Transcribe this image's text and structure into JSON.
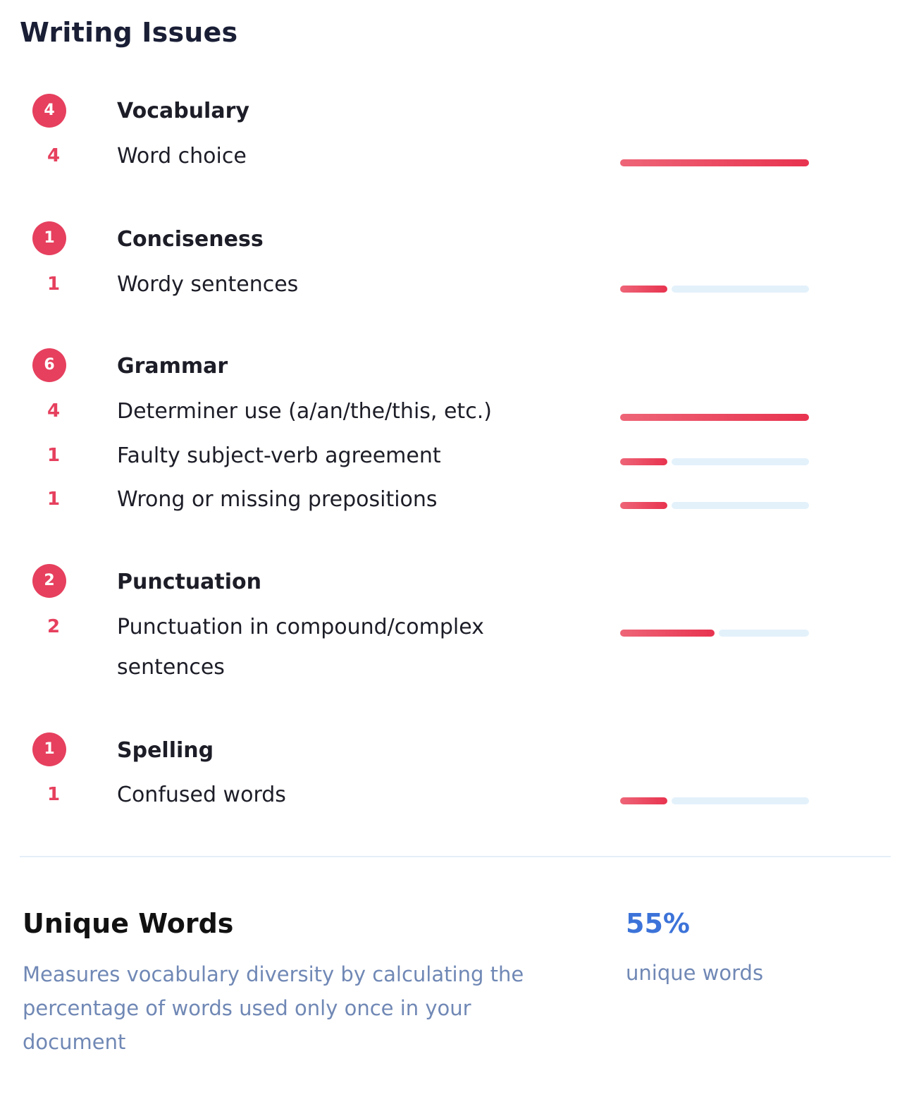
{
  "title": "Writing Issues",
  "colors": {
    "accent": "#e6405e",
    "track": "#e3f1fb",
    "link": "#3c73d9",
    "muted": "#7088b5"
  },
  "categories": [
    {
      "count": "4",
      "title": "Vocabulary",
      "items": [
        {
          "count": "4",
          "label": "Word choice",
          "fill_fraction": 1.0
        }
      ]
    },
    {
      "count": "1",
      "title": "Conciseness",
      "items": [
        {
          "count": "1",
          "label": "Wordy sentences",
          "fill_fraction": 0.25
        }
      ]
    },
    {
      "count": "6",
      "title": "Grammar",
      "items": [
        {
          "count": "4",
          "label": "Determiner use (a/an/the/this, etc.)",
          "fill_fraction": 1.0
        },
        {
          "count": "1",
          "label": "Faulty subject-verb agreement",
          "fill_fraction": 0.25
        },
        {
          "count": "1",
          "label": "Wrong or missing prepositions",
          "fill_fraction": 0.25
        }
      ]
    },
    {
      "count": "2",
      "title": "Punctuation",
      "items": [
        {
          "count": "2",
          "label": "Punctuation in compound/complex sentences",
          "fill_fraction": 0.5
        }
      ]
    },
    {
      "count": "1",
      "title": "Spelling",
      "items": [
        {
          "count": "1",
          "label": "Confused words",
          "fill_fraction": 0.25
        }
      ]
    }
  ],
  "unique_words": {
    "title": "Unique Words",
    "description": "Measures vocabulary diversity by calculating the percentage of words used only once in your document",
    "value": "55%",
    "caption": "unique words"
  }
}
